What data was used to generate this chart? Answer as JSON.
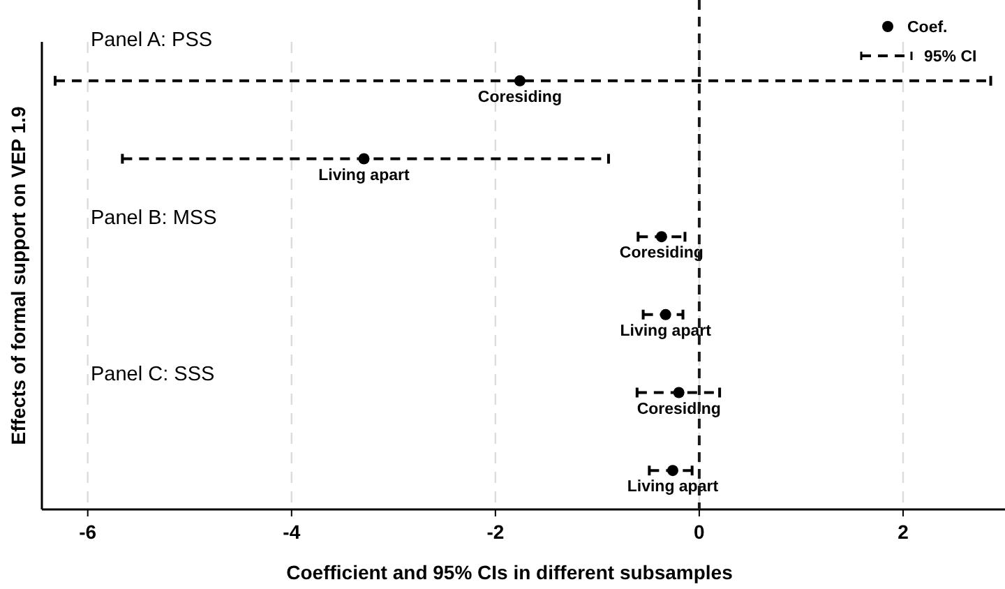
{
  "chart_data": {
    "type": "scatter",
    "orientation": "horizontal",
    "xlabel": "Coefficient and 95% CIs in different subsamples",
    "ylabel": "Effects of formal support on VEP 1.9",
    "categories": [
      null,
      null,
      null,
      null,
      null,
      null
    ],
    "series": [
      {
        "name": "Coef.",
        "color": "#000000",
        "values": [
          -1.76,
          -3.29,
          -0.37,
          -0.33,
          -0.2,
          -0.26
        ],
        "errors": [
          [
            -6.32,
            2.86
          ],
          [
            -5.66,
            -0.89
          ],
          [
            -0.6,
            -0.14
          ],
          [
            -0.55,
            -0.16
          ],
          [
            -0.61,
            0.2
          ],
          [
            -0.49,
            -0.07
          ]
        ],
        "value_labels": [
          "Coresiding",
          "Living apart",
          "Coresiding",
          "Living apart",
          "Coresiding",
          "Living apart"
        ]
      }
    ],
    "annotations": [
      "Panel A: PSS",
      "Panel B: MSS",
      "Panel C: SSS",
      "95% CI"
    ],
    "xlim": [
      -6.45,
      3
    ],
    "xticks": [
      -6,
      -4,
      -2,
      0,
      2
    ],
    "ref_lines": [
      {
        "axis": "x",
        "value": 0,
        "color": "#1a1a1a",
        "line_style": "dashed"
      }
    ],
    "grid": "x",
    "legend": "top right",
    "marker": "circle",
    "line_style": "dashed",
    "tick_labels": "x"
  }
}
